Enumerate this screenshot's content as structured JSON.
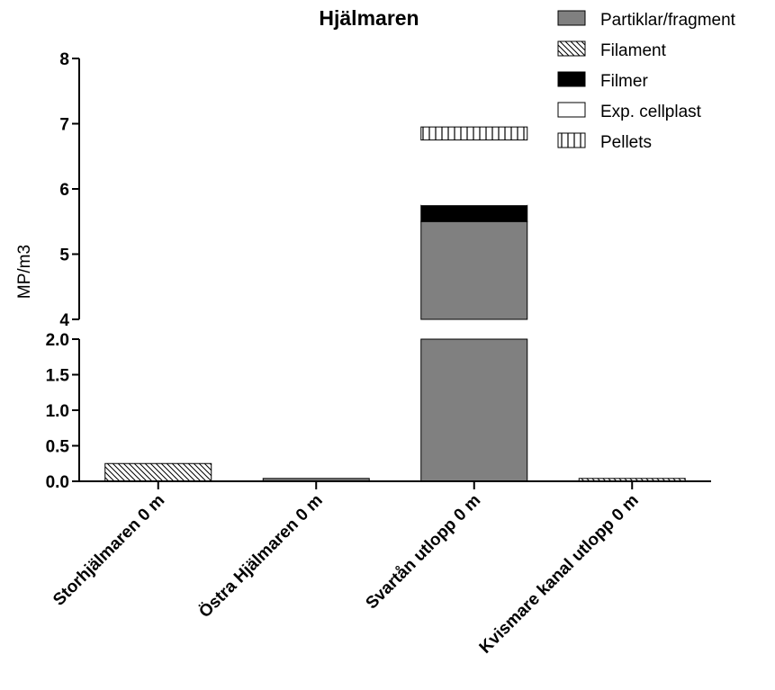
{
  "chart_data": {
    "type": "bar",
    "stacked": true,
    "title": "Hjälmaren",
    "xlabel": "",
    "ylabel": "MP/m3",
    "axis_break": {
      "lower_range": [
        0,
        2.0
      ],
      "upper_range": [
        4,
        8
      ]
    },
    "y_ticks_lower": [
      "0.0",
      "0.5",
      "1.0",
      "1.5",
      "2.0"
    ],
    "y_ticks_upper": [
      "4",
      "5",
      "6",
      "7",
      "8"
    ],
    "categories": [
      "Storhjälmaren 0 m",
      "Östra Hjälmaren 0 m",
      "Svartån utlopp 0 m",
      "Kvismare kanal utlopp 0 m"
    ],
    "series": [
      {
        "name": "Partiklar/fragment",
        "pattern": "solid-gray",
        "values": [
          0,
          0.04,
          5.5,
          0
        ]
      },
      {
        "name": "Filament",
        "pattern": "diagonal-hatch",
        "values": [
          0.25,
          0,
          0,
          0.04
        ]
      },
      {
        "name": "Filmer",
        "pattern": "solid-black",
        "values": [
          0,
          0,
          0.25,
          0
        ]
      },
      {
        "name": "Exp. cellplast",
        "pattern": "white",
        "values": [
          0,
          0,
          1.0,
          0
        ]
      },
      {
        "name": "Pellets",
        "pattern": "vertical-lines",
        "values": [
          0,
          0,
          0.2,
          0
        ]
      }
    ],
    "legend_position": "top-right",
    "grid": false,
    "colors": {
      "gray": "#808080",
      "black": "#000000",
      "white": "#ffffff"
    }
  }
}
